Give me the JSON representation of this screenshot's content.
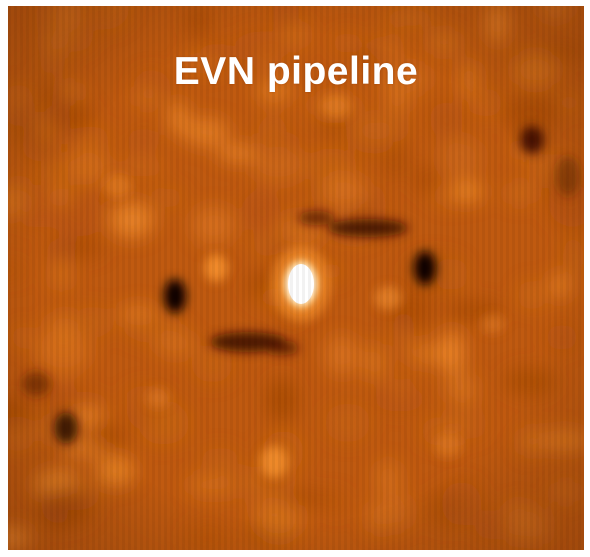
{
  "image": {
    "title": "EVN pipeline",
    "colormap": {
      "background": "#c05a10",
      "mid": "#d8741e",
      "highlight": "#f08a2a",
      "bright": "#ffb060",
      "peak": "#ffffff",
      "dark": "#1a0600"
    },
    "description_icon": "radio-map-image"
  }
}
